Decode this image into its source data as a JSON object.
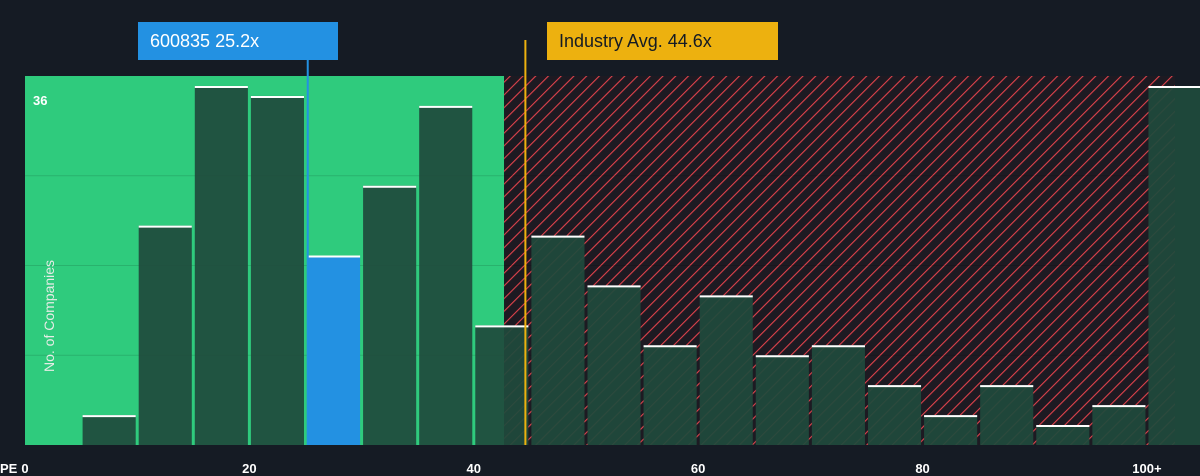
{
  "chart_data": {
    "type": "bar",
    "xlabel": "PE",
    "ylabel": "No. of Companies",
    "y_top_label": "36",
    "xlim": [
      0,
      102.5
    ],
    "ylim": [
      0,
      37
    ],
    "x_ticks": [
      {
        "value": 0,
        "label": "0"
      },
      {
        "value": 20,
        "label": "20"
      },
      {
        "value": 40,
        "label": "40"
      },
      {
        "value": 60,
        "label": "60"
      },
      {
        "value": 80,
        "label": "80"
      },
      {
        "value": 100,
        "label": "100+"
      }
    ],
    "bins": [
      {
        "start": 5,
        "end": 10,
        "count": 3
      },
      {
        "start": 10,
        "end": 15,
        "count": 22
      },
      {
        "start": 15,
        "end": 20,
        "count": 36
      },
      {
        "start": 20,
        "end": 25,
        "count": 35
      },
      {
        "start": 25,
        "end": 30,
        "count": 19
      },
      {
        "start": 30,
        "end": 35,
        "count": 26
      },
      {
        "start": 35,
        "end": 40,
        "count": 34
      },
      {
        "start": 40,
        "end": 45,
        "count": 12
      },
      {
        "start": 45,
        "end": 50,
        "count": 21
      },
      {
        "start": 50,
        "end": 55,
        "count": 16
      },
      {
        "start": 55,
        "end": 60,
        "count": 10
      },
      {
        "start": 60,
        "end": 65,
        "count": 15
      },
      {
        "start": 65,
        "end": 70,
        "count": 9
      },
      {
        "start": 70,
        "end": 75,
        "count": 10
      },
      {
        "start": 75,
        "end": 80,
        "count": 6
      },
      {
        "start": 80,
        "end": 85,
        "count": 3
      },
      {
        "start": 85,
        "end": 90,
        "count": 6
      },
      {
        "start": 90,
        "end": 95,
        "count": 2
      },
      {
        "start": 95,
        "end": 100,
        "count": 4
      },
      {
        "start": 100,
        "end": 105,
        "count": 36
      }
    ],
    "company": {
      "label": "600835 25.2x",
      "value": 25.2
    },
    "industry": {
      "label": "Industry Avg. 44.6x",
      "value": 44.6
    },
    "green_zone_end": 42.7,
    "colors": {
      "background": "#151b24",
      "green_zone": "#2fcb7d",
      "bar": "#1f4a3c",
      "highlight_bar": "#2391e2",
      "red_hatch": "#e0424b",
      "industry": "#edb10f",
      "bar_top": "#ffffff"
    }
  }
}
